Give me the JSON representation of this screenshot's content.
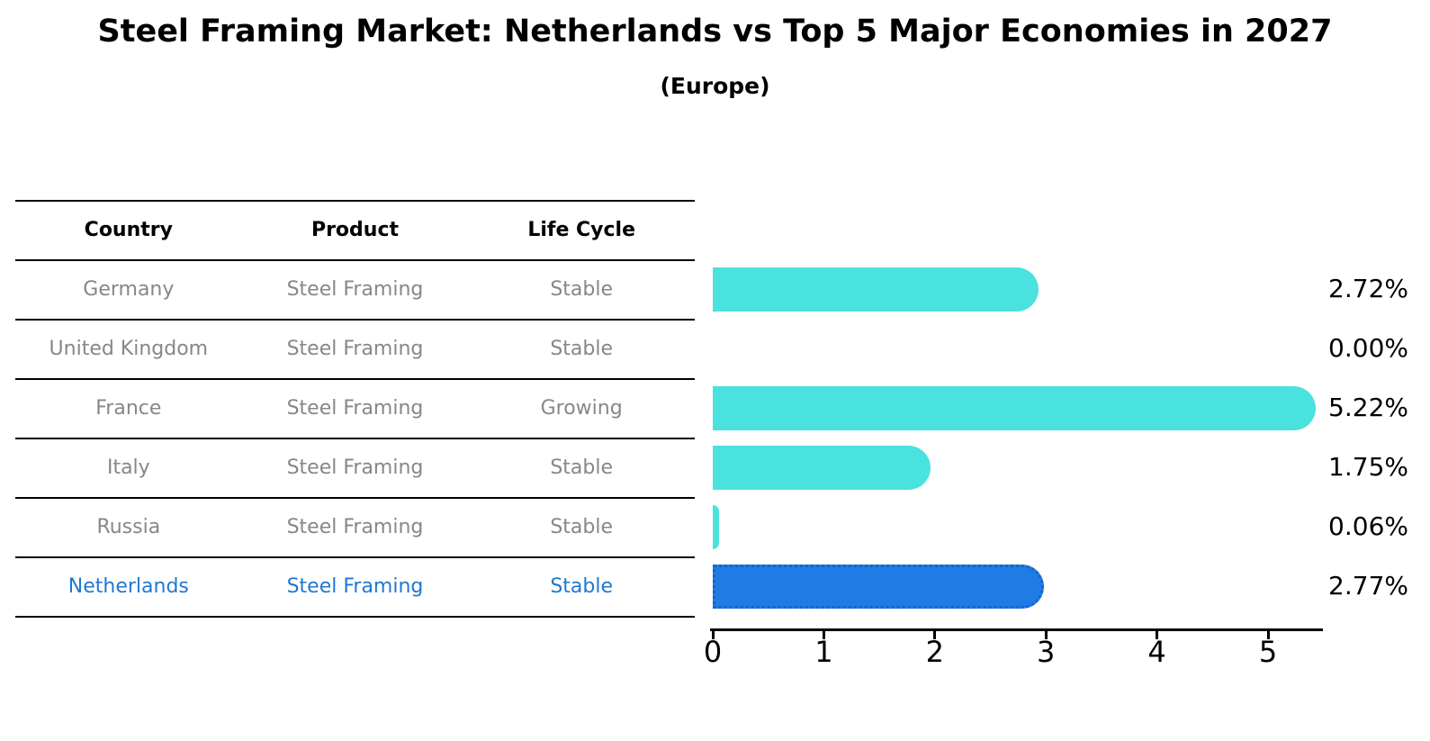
{
  "title": "Steel Framing Market: Netherlands vs Top 5 Major Economies in 2027",
  "subtitle": "(Europe)",
  "table": {
    "headers": [
      "Country",
      "Product",
      "Life Cycle"
    ],
    "rows": [
      {
        "country": "Germany",
        "product": "Steel Framing",
        "life_cycle": "Stable",
        "value": 2.72,
        "value_label": "2.72%",
        "highlight": false
      },
      {
        "country": "United Kingdom",
        "product": "Steel Framing",
        "life_cycle": "Stable",
        "value": 0.0,
        "value_label": "0.00%",
        "highlight": false
      },
      {
        "country": "France",
        "product": "Steel Framing",
        "life_cycle": "Growing",
        "value": 5.22,
        "value_label": "5.22%",
        "highlight": false
      },
      {
        "country": "Italy",
        "product": "Steel Framing",
        "life_cycle": "Stable",
        "value": 1.75,
        "value_label": "1.75%",
        "highlight": false
      },
      {
        "country": "Russia",
        "product": "Steel Framing",
        "life_cycle": "Stable",
        "value": 0.06,
        "value_label": "0.06%",
        "highlight": false
      },
      {
        "country": "Netherlands",
        "product": "Steel Framing",
        "life_cycle": "Stable",
        "value": 2.77,
        "value_label": "2.77%",
        "highlight": true
      }
    ]
  },
  "chart_data": {
    "type": "bar",
    "orientation": "horizontal",
    "title": "Steel Framing Market: Netherlands vs Top 5 Major Economies in 2027",
    "subtitle": "(Europe)",
    "categories": [
      "Germany",
      "United Kingdom",
      "France",
      "Italy",
      "Russia",
      "Netherlands"
    ],
    "values": [
      2.72,
      0.0,
      5.22,
      1.75,
      0.06,
      2.77
    ],
    "value_labels": [
      "2.72%",
      "0.00%",
      "5.22%",
      "1.75%",
      "0.06%",
      "2.77%"
    ],
    "xlabel": "",
    "ylabel": "",
    "xlim": [
      0,
      5.5
    ],
    "x_ticks": [
      "0",
      "1",
      "2",
      "3",
      "4",
      "5"
    ],
    "grid": false,
    "legend": false,
    "highlight_category": "Netherlands"
  },
  "colors": {
    "bar": "#4AE2DE",
    "highlight_bar": "#1F7CE5",
    "highlight_border": "#1565C8",
    "highlight_text": "#1f78d1",
    "body_text": "#878787",
    "axis": "#000000"
  }
}
